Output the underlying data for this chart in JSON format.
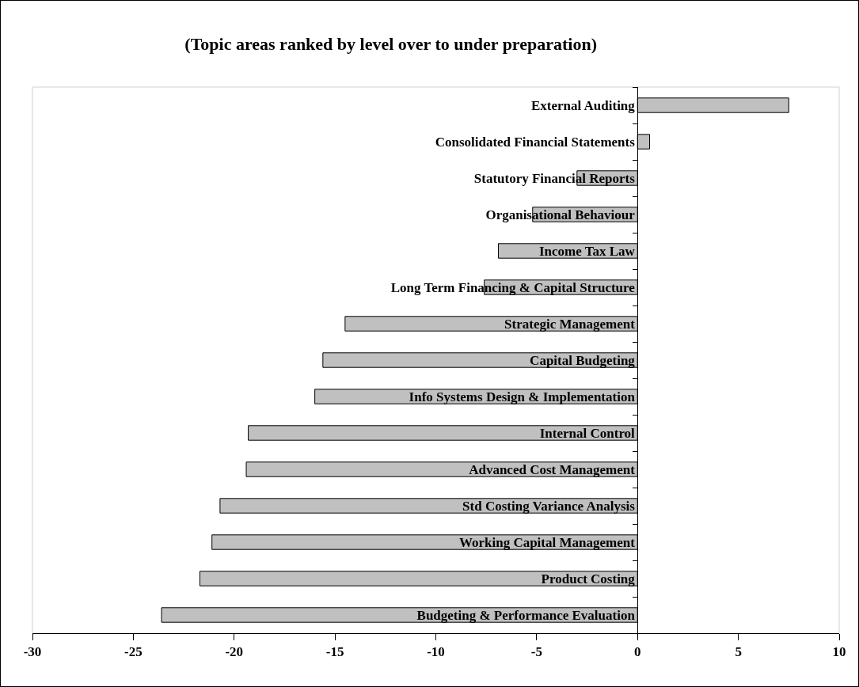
{
  "chart_data": {
    "type": "bar",
    "orientation": "horizontal",
    "title": "(Topic areas ranked by level over to under preparation)",
    "categories": [
      "External Auditing",
      "Consolidated Financial Statements",
      "Statutory Financial Reports",
      "Organisational Behaviour",
      "Income Tax Law",
      "Long Term Financing & Capital Structure",
      "Strategic Management",
      "Capital Budgeting",
      "Info Systems Design & Implementation",
      "Internal Control",
      "Advanced Cost Management",
      "Std Costing Variance Analysis",
      "Working Capital Management",
      "Product Costing",
      "Budgeting & Performance Evaluation"
    ],
    "values": [
      7.5,
      0.6,
      -3.0,
      -5.2,
      -6.9,
      -7.6,
      -14.5,
      -15.6,
      -16.0,
      -19.3,
      -19.4,
      -20.7,
      -21.1,
      -21.7,
      -23.6
    ],
    "color": "#c0c0c0",
    "xlim": [
      -30,
      10
    ],
    "xticks": [
      -30,
      -25,
      -20,
      -15,
      -10,
      -5,
      0,
      5,
      10
    ],
    "grid": false,
    "legend": false
  }
}
